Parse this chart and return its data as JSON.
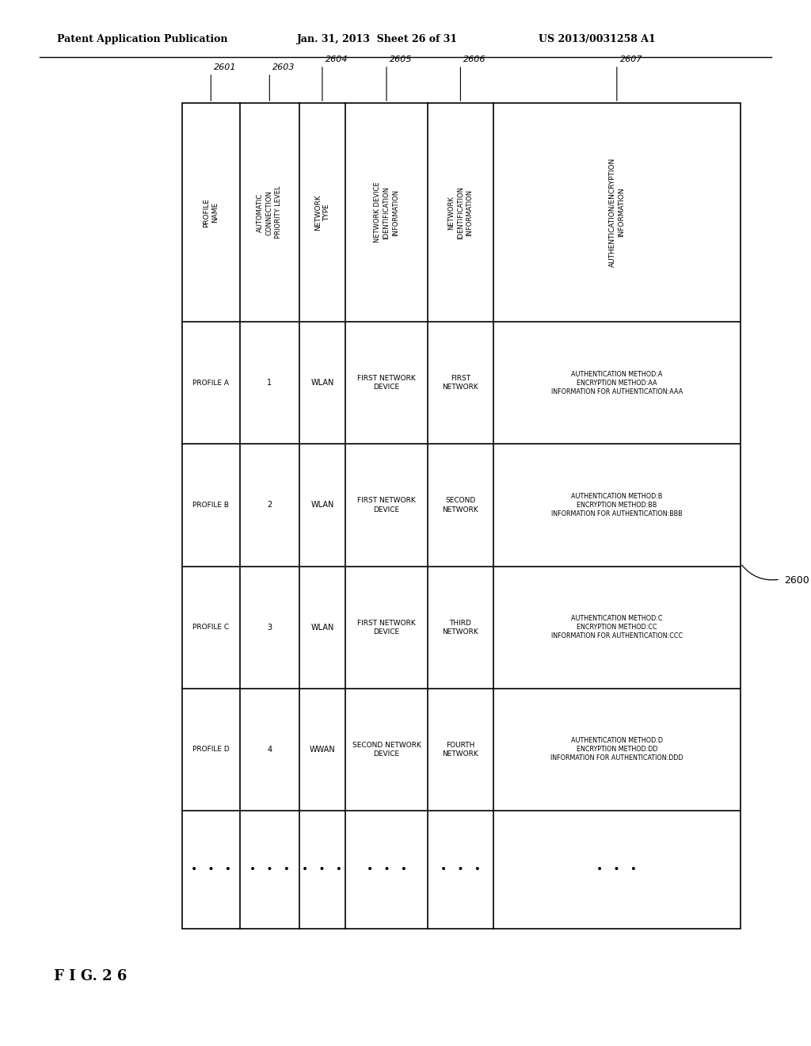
{
  "fig_label": "F I G. 2 6",
  "header_line1": "Patent Application Publication",
  "header_line2": "Jan. 31, 2013  Sheet 26 of 31",
  "header_line3": "US 2013/0031258 A1",
  "table_ref": "2600",
  "col_labels": [
    "PROFILE\nNAME",
    "AUTOMATIC\nCONNECTION\nPRIORITY LEVEL",
    "NETWORK\nTYPE",
    "NETWORK DEVICE\nIDENTIFICATION\nINFORMATION",
    "NETWORK\nIDENTIFICATION\nINFORMATION",
    "AUTHENTICATION/ENCRYPTION\nINFORMATION"
  ],
  "col_ref_ids": [
    "2601",
    "2603",
    "2604",
    "2605",
    "2606",
    "2607"
  ],
  "rows": [
    {
      "profile": "PROFILE A",
      "priority": "1",
      "net_type": "WLAN",
      "net_device": "FIRST NETWORK\nDEVICE",
      "net_id": "FIRST\nNETWORK",
      "auth": "AUTHENTICATION METHOD:A\nENCRYPTION METHOD:AA\nINFORMATION FOR AUTHENTICATION:AAA"
    },
    {
      "profile": "PROFILE B",
      "priority": "2",
      "net_type": "WLAN",
      "net_device": "FIRST NETWORK\nDEVICE",
      "net_id": "SECOND\nNETWORK",
      "auth": "AUTHENTICATION METHOD:B\nENCRYPTION METHOD:BB\nINFORMATION FOR AUTHENTICATION:BBB"
    },
    {
      "profile": "PROFILE C",
      "priority": "3",
      "net_type": "WLAN",
      "net_device": "FIRST NETWORK\nDEVICE",
      "net_id": "THIRD\nNETWORK",
      "auth": "AUTHENTICATION METHOD:C\nENCRYPTION METHOD:CC\nINFORMATION FOR AUTHENTICATION:CCC"
    },
    {
      "profile": "PROFILE D",
      "priority": "4",
      "net_type": "WWAN",
      "net_device": "SECOND NETWORK\nDEVICE",
      "net_id": "FOURTH\nNETWORK",
      "auth": "AUTHENTICATION METHOD:D\nENCRYPTION METHOD:DD\nINFORMATION FOR AUTHENTICATION:DDD"
    },
    {
      "profile": "•   •   •",
      "priority": "•   •   •",
      "net_type": "•   •   •",
      "net_device": "•   •   •",
      "net_id": "•   •   •",
      "auth": "•   •   •"
    }
  ],
  "bg_color": "#ffffff",
  "line_color": "#000000"
}
